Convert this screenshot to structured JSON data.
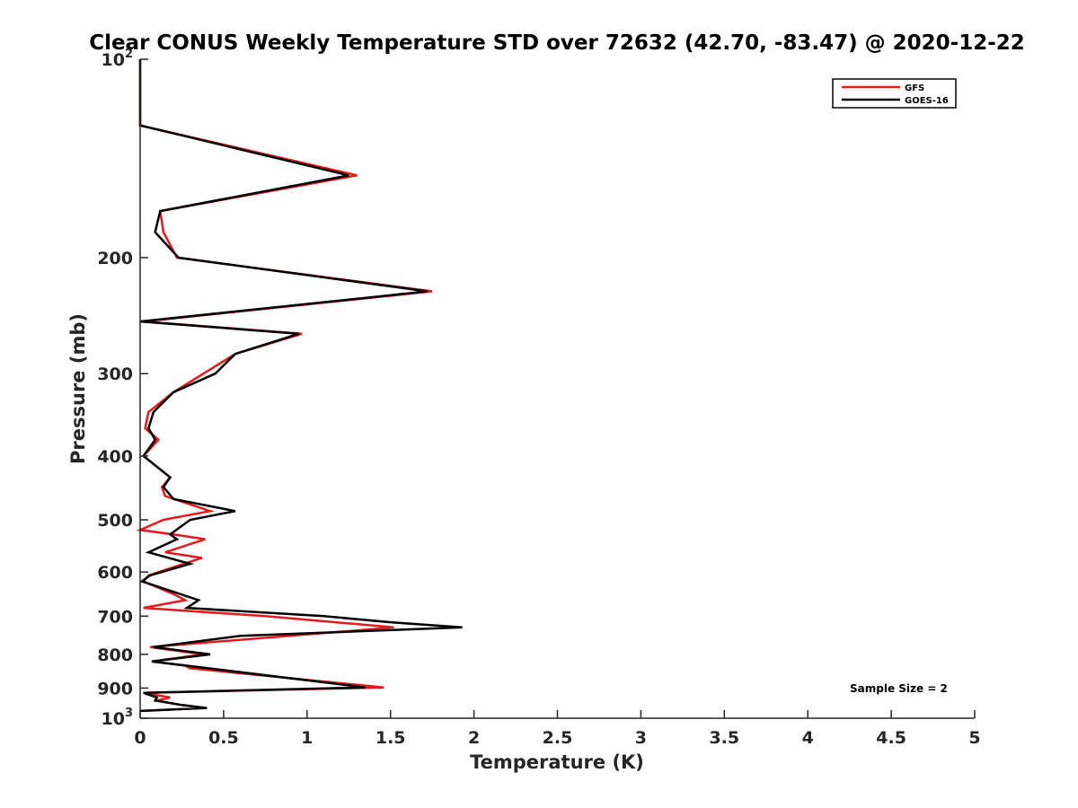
{
  "chart_data": {
    "type": "line",
    "title": "Clear CONUS Weekly Temperature STD over 72632 (42.70, -83.47) @ 2020-12-22",
    "xlabel": "Temperature (K)",
    "ylabel": "Pressure (mb)",
    "xlim": [
      0,
      5
    ],
    "ylim": [
      100,
      1000
    ],
    "y_scale": "log",
    "y_reversed": true,
    "x_ticks": [
      "0",
      "0.5",
      "1",
      "1.5",
      "2",
      "2.5",
      "3",
      "3.5",
      "4",
      "4.5",
      "5"
    ],
    "x_tick_values": [
      0,
      0.5,
      1,
      1.5,
      2,
      2.5,
      3,
      3.5,
      4,
      4.5,
      5
    ],
    "y_ticks": [
      {
        "value": 100,
        "label": "10",
        "exp": "2"
      },
      {
        "value": 200,
        "label": "200",
        "exp": ""
      },
      {
        "value": 300,
        "label": "300",
        "exp": ""
      },
      {
        "value": 400,
        "label": "400",
        "exp": ""
      },
      {
        "value": 500,
        "label": "500",
        "exp": ""
      },
      {
        "value": 600,
        "label": "600",
        "exp": ""
      },
      {
        "value": 700,
        "label": "700",
        "exp": ""
      },
      {
        "value": 800,
        "label": "800",
        "exp": ""
      },
      {
        "value": 900,
        "label": "900",
        "exp": ""
      },
      {
        "value": 1000,
        "label": "10",
        "exp": "3"
      }
    ],
    "grid": false,
    "legend_position": "top-right",
    "annotation": "Sample Size = 2",
    "series": [
      {
        "name": "GFS",
        "color": "#e41a1c",
        "points": [
          [
            0,
            100
          ],
          [
            0,
            126
          ],
          [
            1.3,
            150
          ],
          [
            0.12,
            170
          ],
          [
            0.14,
            183
          ],
          [
            0.22,
            200
          ],
          [
            1.75,
            225
          ],
          [
            0.02,
            250
          ],
          [
            0.97,
            261
          ],
          [
            0.57,
            280
          ],
          [
            0.2,
            320
          ],
          [
            0.05,
            343
          ],
          [
            0.03,
            363
          ],
          [
            0.11,
            378
          ],
          [
            0.02,
            400
          ],
          [
            0.18,
            431
          ],
          [
            0.13,
            446
          ],
          [
            0.15,
            460
          ],
          [
            0.42,
            485
          ],
          [
            0.14,
            500
          ],
          [
            0,
            518
          ],
          [
            0.2,
            526
          ],
          [
            0.39,
            535
          ],
          [
            0.15,
            560
          ],
          [
            0.37,
            571
          ],
          [
            0.05,
            607
          ],
          [
            0.02,
            620
          ],
          [
            0.2,
            648
          ],
          [
            0.27,
            662
          ],
          [
            0.02,
            680
          ],
          [
            0.75,
            700
          ],
          [
            1.52,
            728
          ],
          [
            0.06,
            780
          ],
          [
            0.38,
            800
          ],
          [
            0.07,
            820
          ],
          [
            0.27,
            832
          ],
          [
            0.3,
            840
          ],
          [
            1.46,
            898
          ],
          [
            0.02,
            915
          ],
          [
            0.18,
            930
          ],
          [
            0.1,
            940
          ],
          [
            0.25,
            955
          ],
          [
            0.38,
            965
          ],
          [
            0.02,
            975
          ]
        ]
      },
      {
        "name": "GOES-16",
        "color": "#000000",
        "points": [
          [
            0,
            100
          ],
          [
            0,
            126
          ],
          [
            1.25,
            150
          ],
          [
            0.12,
            170
          ],
          [
            0.09,
            183
          ],
          [
            0.23,
            200
          ],
          [
            1.72,
            225
          ],
          [
            0,
            250
          ],
          [
            0.95,
            261
          ],
          [
            0.57,
            280
          ],
          [
            0.45,
            300
          ],
          [
            0.2,
            320
          ],
          [
            0.08,
            343
          ],
          [
            0.05,
            363
          ],
          [
            0.09,
            378
          ],
          [
            0.02,
            400
          ],
          [
            0.18,
            431
          ],
          [
            0.14,
            446
          ],
          [
            0.2,
            465
          ],
          [
            0.57,
            485
          ],
          [
            0.3,
            500
          ],
          [
            0.18,
            526
          ],
          [
            0.22,
            535
          ],
          [
            0.05,
            560
          ],
          [
            0.3,
            583
          ],
          [
            0.06,
            607
          ],
          [
            0.01,
            620
          ],
          [
            0.24,
            648
          ],
          [
            0.35,
            662
          ],
          [
            0.28,
            680
          ],
          [
            1.1,
            700
          ],
          [
            1.5,
            715
          ],
          [
            1.93,
            728
          ],
          [
            0.6,
            750
          ],
          [
            0.08,
            780
          ],
          [
            0.42,
            800
          ],
          [
            0.07,
            820
          ],
          [
            1.35,
            898
          ],
          [
            0.02,
            915
          ],
          [
            0.1,
            930
          ],
          [
            0.09,
            940
          ],
          [
            0.25,
            955
          ],
          [
            0.4,
            965
          ],
          [
            0,
            975
          ]
        ]
      }
    ]
  }
}
